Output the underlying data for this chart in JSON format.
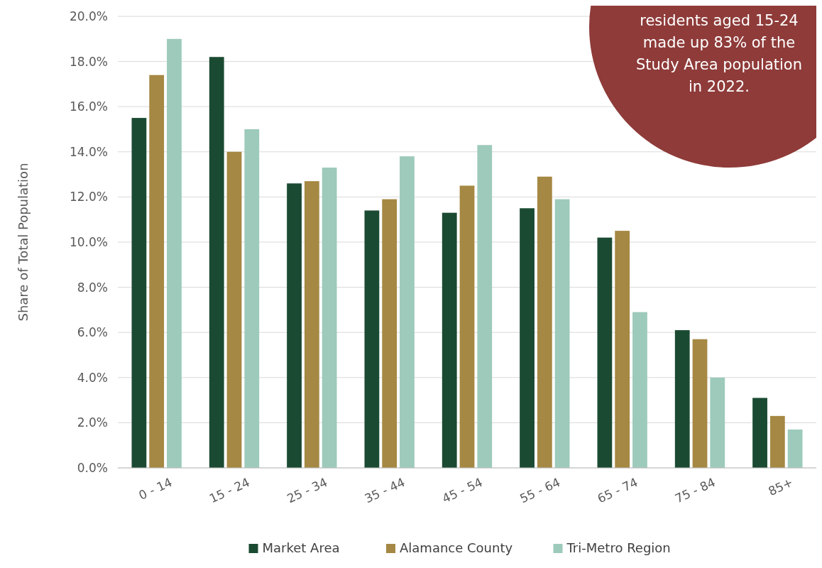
{
  "chart_data": {
    "type": "bar",
    "ylabel": "Share of Total Population",
    "categories": [
      "0 - 14",
      "15 - 24",
      "25 - 34",
      "35 - 44",
      "45 - 54",
      "55 - 64",
      "65 - 74",
      "75 - 84",
      "85+"
    ],
    "series": [
      {
        "name": "Market Area",
        "color": "#1b4a32",
        "values": [
          15.5,
          18.2,
          12.6,
          11.4,
          11.3,
          11.5,
          10.2,
          6.1,
          3.1
        ]
      },
      {
        "name": "Alamance County",
        "color": "#a58843",
        "values": [
          17.4,
          14.0,
          12.7,
          11.9,
          12.5,
          12.9,
          10.5,
          5.7,
          2.3
        ]
      },
      {
        "name": "Tri-Metro Region",
        "color": "#9dcabb",
        "values": [
          19.0,
          15.0,
          13.3,
          13.8,
          14.3,
          11.9,
          6.9,
          4.0,
          1.7
        ]
      }
    ],
    "ylim": [
      0,
      20
    ],
    "yticks": [
      {
        "value": 0,
        "label": "0.0%"
      },
      {
        "value": 2,
        "label": "2.0%"
      },
      {
        "value": 4,
        "label": "4.0%"
      },
      {
        "value": 6,
        "label": "6.0%"
      },
      {
        "value": 8,
        "label": "8.0%"
      },
      {
        "value": 10,
        "label": "10.0%"
      },
      {
        "value": 12,
        "label": "12.0%"
      },
      {
        "value": 14,
        "label": "14.0%"
      },
      {
        "value": 16,
        "label": "16.0%"
      },
      {
        "value": 18,
        "label": "18.0%"
      },
      {
        "value": 20,
        "label": "20.0%"
      }
    ],
    "grid": "y",
    "legend": "bottom",
    "annotations": [
      "residents aged 15-24 made up 83% of the Study Area population in 2022."
    ]
  }
}
